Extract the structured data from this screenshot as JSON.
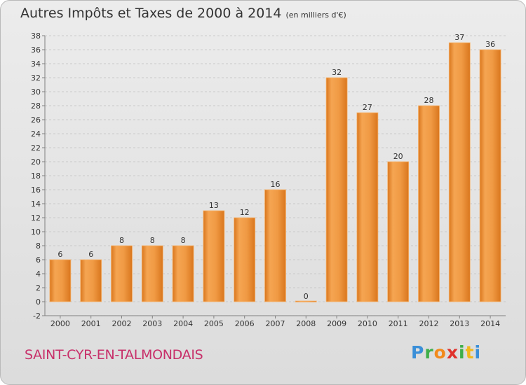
{
  "title": "Autres Impôts et Taxes de 2000 à 2014",
  "subtitle": "(en milliers d'€)",
  "town_name": "SAINT-CYR-EN-TALMONDAIS",
  "logo_letters": [
    "P",
    "r",
    "o",
    "x",
    "i",
    "t",
    "i"
  ],
  "colors": {
    "bar_light": "#f5a552",
    "bar_dark": "#d9761d",
    "grid": "#c9c9c9",
    "axis": "#808080",
    "town": "#c8306a"
  },
  "chart_data": {
    "type": "bar",
    "title": "Autres Impôts et Taxes de 2000 à 2014",
    "subtitle": "(en milliers d'€)",
    "xlabel": "",
    "ylabel": "",
    "categories": [
      "2000",
      "2001",
      "2002",
      "2003",
      "2004",
      "2005",
      "2006",
      "2007",
      "2008",
      "2009",
      "2010",
      "2011",
      "2012",
      "2013",
      "2014"
    ],
    "values": [
      6,
      6,
      8,
      8,
      8,
      13,
      12,
      16,
      0,
      32,
      27,
      20,
      28,
      37,
      36
    ],
    "ylim": [
      -2,
      38
    ],
    "yticks": [
      -2,
      0,
      2,
      4,
      6,
      8,
      10,
      12,
      14,
      16,
      18,
      20,
      22,
      24,
      26,
      28,
      30,
      32,
      34,
      36,
      38
    ],
    "grid": true,
    "legend": "none"
  }
}
